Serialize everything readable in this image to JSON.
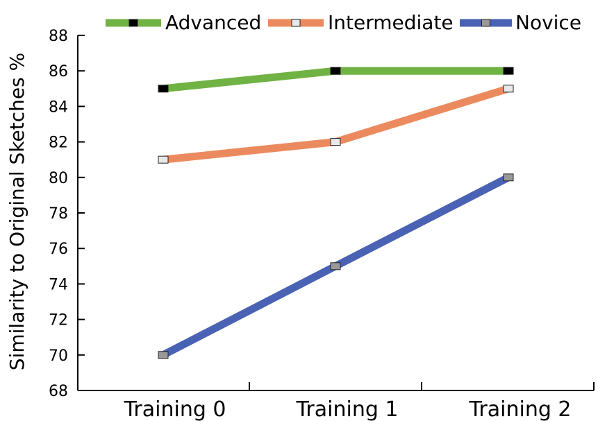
{
  "chart_data": {
    "type": "line",
    "title": "",
    "xlabel": "",
    "ylabel": "Similarity to Original Sketches %",
    "categories": [
      "Training 0",
      "Training 1",
      "Training 2"
    ],
    "ylim": [
      68,
      88
    ],
    "yticks": [
      68,
      70,
      72,
      74,
      76,
      78,
      80,
      82,
      84,
      86,
      88
    ],
    "grid": false,
    "legend_position": "top",
    "series": [
      {
        "name": "Advanced",
        "values": [
          85,
          86,
          86
        ],
        "color": "#70b244",
        "marker_fill": "#000000"
      },
      {
        "name": "Intermediate",
        "values": [
          81,
          82,
          85
        ],
        "color": "#ec8a5f",
        "marker_fill": "#e8e8e8"
      },
      {
        "name": "Novice",
        "values": [
          70,
          75,
          80
        ],
        "color": "#4a62b3",
        "marker_fill": "#999999"
      }
    ]
  }
}
